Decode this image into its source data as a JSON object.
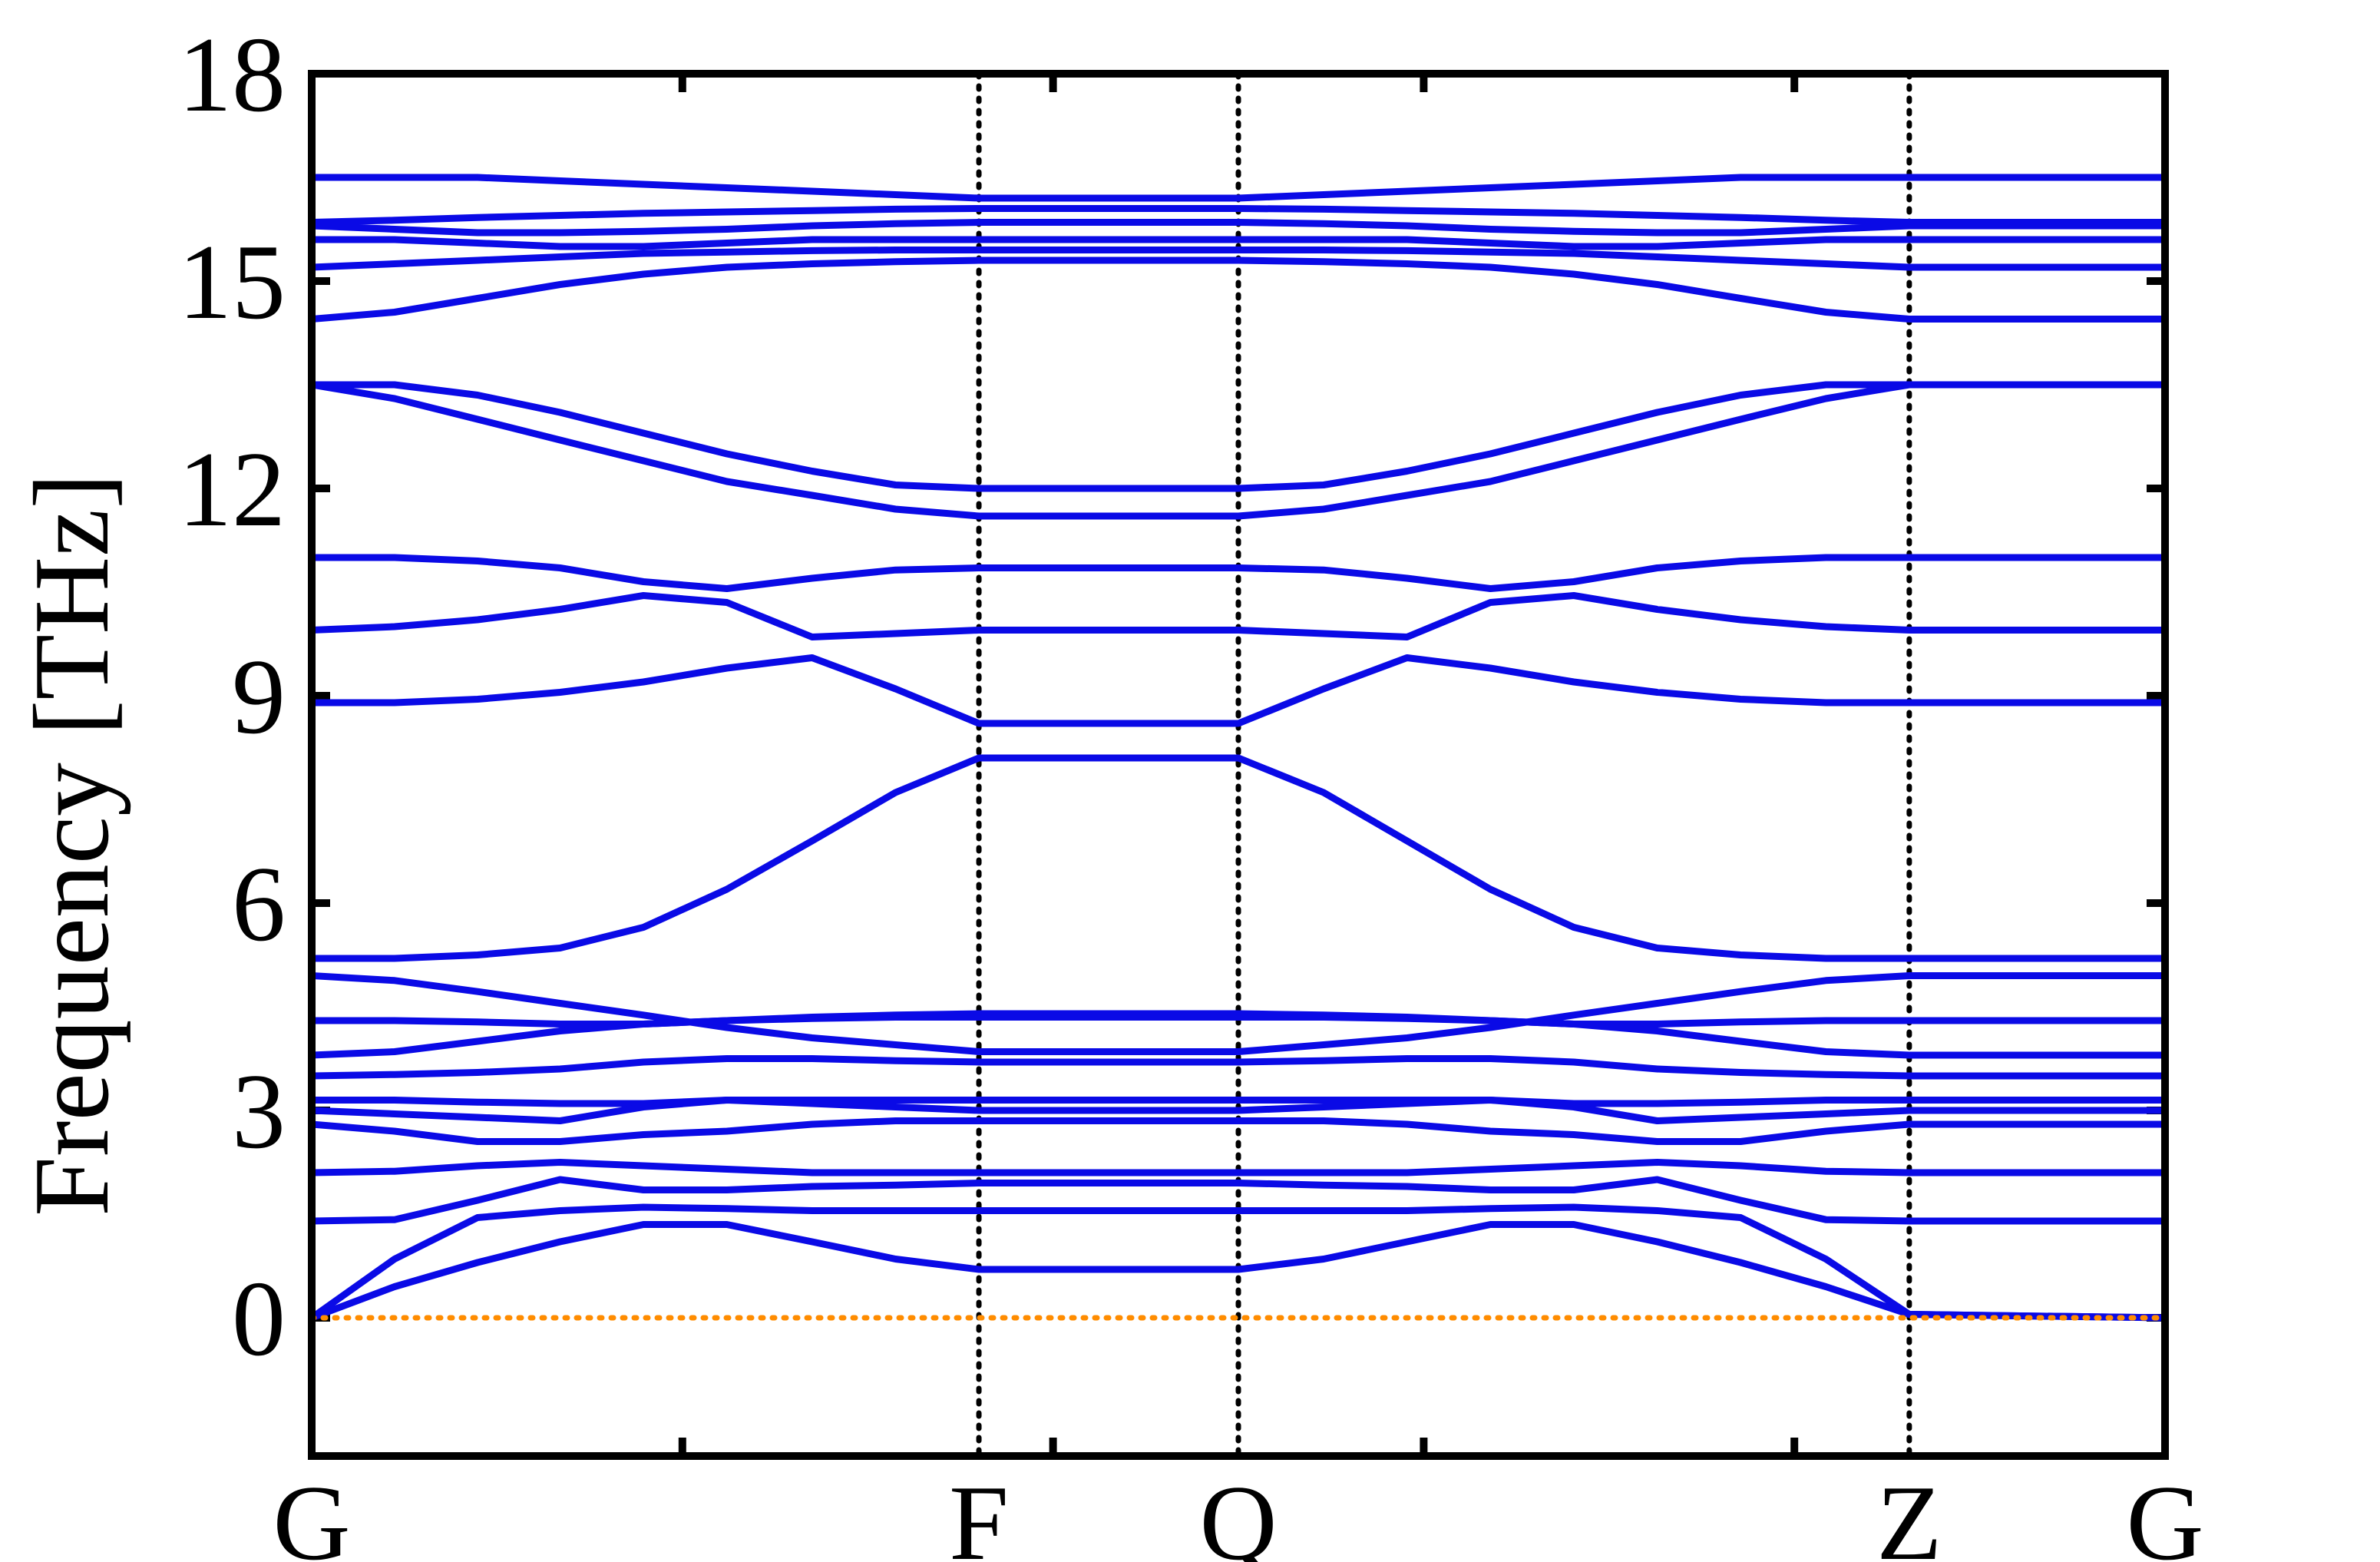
{
  "chart_data": {
    "type": "line",
    "ylabel": "Frequency [THz]",
    "xlim": [
      0,
      1
    ],
    "ylim": [
      -2,
      18
    ],
    "xticks": [
      {
        "value": 0,
        "label": "G"
      },
      {
        "value": 0.36,
        "label": "F"
      },
      {
        "value": 0.5,
        "label": "Q"
      },
      {
        "value": 0.862,
        "label": "Z"
      },
      {
        "value": 1,
        "label": "G"
      }
    ],
    "xminorticks": [
      0.2,
      0.4,
      0.6,
      0.8
    ],
    "yticks": [
      0,
      3,
      6,
      9,
      12,
      15,
      18
    ],
    "xtick_lines": "dotted",
    "x": [
      0,
      0.0447,
      0.0895,
      0.134,
      0.179,
      0.224,
      0.27,
      0.315,
      0.36,
      0.5,
      0.546,
      0.591,
      0.636,
      0.681,
      0.726,
      0.771,
      0.817,
      0.862,
      1
    ],
    "series": [
      {
        "color": "#0a0ae6",
        "values": [
          16.5,
          16.5,
          16.5,
          16.45,
          16.4,
          16.35,
          16.3,
          16.25,
          16.2,
          16.2,
          16.25,
          16.3,
          16.35,
          16.4,
          16.45,
          16.5,
          16.5,
          16.5,
          16.5
        ]
      },
      {
        "color": "#0a0ae6",
        "values": [
          15.85,
          15.88,
          15.92,
          15.95,
          15.98,
          16.0,
          16.02,
          16.04,
          16.05,
          16.05,
          16.04,
          16.02,
          16.0,
          15.98,
          15.95,
          15.92,
          15.88,
          15.85,
          15.85
        ]
      },
      {
        "color": "#0a0ae6",
        "values": [
          15.8,
          15.75,
          15.7,
          15.7,
          15.72,
          15.75,
          15.8,
          15.83,
          15.85,
          15.85,
          15.83,
          15.8,
          15.75,
          15.72,
          15.7,
          15.7,
          15.75,
          15.8,
          15.8
        ]
      },
      {
        "color": "#0a0ae6",
        "values": [
          15.6,
          15.6,
          15.55,
          15.5,
          15.5,
          15.55,
          15.6,
          15.6,
          15.6,
          15.6,
          15.6,
          15.6,
          15.55,
          15.5,
          15.5,
          15.55,
          15.6,
          15.6,
          15.6
        ]
      },
      {
        "color": "#0a0ae6",
        "values": [
          15.2,
          15.25,
          15.3,
          15.35,
          15.4,
          15.42,
          15.44,
          15.45,
          15.45,
          15.45,
          15.45,
          15.44,
          15.42,
          15.4,
          15.35,
          15.3,
          15.25,
          15.2,
          15.2
        ]
      },
      {
        "color": "#0a0ae6",
        "values": [
          14.45,
          14.55,
          14.75,
          14.95,
          15.1,
          15.2,
          15.25,
          15.28,
          15.3,
          15.3,
          15.28,
          15.25,
          15.2,
          15.1,
          14.95,
          14.75,
          14.55,
          14.45,
          14.45
        ]
      },
      {
        "color": "#0a0ae6",
        "values": [
          13.5,
          13.5,
          13.35,
          13.1,
          12.8,
          12.5,
          12.25,
          12.05,
          12.0,
          12.0,
          12.05,
          12.25,
          12.5,
          12.8,
          13.1,
          13.35,
          13.5,
          13.5,
          13.5
        ]
      },
      {
        "color": "#0a0ae6",
        "values": [
          13.5,
          13.3,
          13.0,
          12.7,
          12.4,
          12.1,
          11.9,
          11.7,
          11.6,
          11.6,
          11.7,
          11.9,
          12.1,
          12.4,
          12.7,
          13.0,
          13.3,
          13.5,
          13.5
        ]
      },
      {
        "color": "#0a0ae6",
        "values": [
          11.0,
          11.0,
          10.95,
          10.85,
          10.65,
          10.55,
          10.7,
          10.82,
          10.85,
          10.85,
          10.82,
          10.7,
          10.55,
          10.65,
          10.85,
          10.95,
          11.0,
          11.0,
          11.0
        ]
      },
      {
        "color": "#0a0ae6",
        "values": [
          9.95,
          10.0,
          10.1,
          10.25,
          10.45,
          10.35,
          9.85,
          9.9,
          9.95,
          9.95,
          9.9,
          9.85,
          10.35,
          10.45,
          10.25,
          10.1,
          10.0,
          9.95,
          9.95
        ]
      },
      {
        "color": "#0a0ae6",
        "values": [
          8.9,
          8.9,
          8.95,
          9.05,
          9.2,
          9.4,
          9.55,
          9.1,
          8.6,
          8.6,
          9.1,
          9.55,
          9.4,
          9.2,
          9.05,
          8.95,
          8.9,
          8.9,
          8.9
        ]
      },
      {
        "color": "#0a0ae6",
        "values": [
          5.2,
          5.2,
          5.25,
          5.35,
          5.65,
          6.2,
          6.9,
          7.6,
          8.1,
          8.1,
          7.6,
          6.9,
          6.2,
          5.65,
          5.35,
          5.25,
          5.2,
          5.2,
          5.2
        ]
      },
      {
        "color": "#0a0ae6",
        "values": [
          4.95,
          4.88,
          4.72,
          4.55,
          4.38,
          4.2,
          4.05,
          3.95,
          3.85,
          3.85,
          3.95,
          4.05,
          4.2,
          4.38,
          4.55,
          4.72,
          4.88,
          4.95,
          4.95
        ]
      },
      {
        "color": "#0a0ae6",
        "values": [
          4.3,
          4.3,
          4.28,
          4.25,
          4.25,
          4.3,
          4.35,
          4.38,
          4.4,
          4.4,
          4.38,
          4.35,
          4.3,
          4.25,
          4.25,
          4.28,
          4.3,
          4.3,
          4.3
        ]
      },
      {
        "color": "#0a0ae6",
        "values": [
          3.8,
          3.85,
          4.0,
          4.15,
          4.25,
          4.3,
          4.33,
          4.35,
          4.35,
          4.35,
          4.35,
          4.33,
          4.3,
          4.25,
          4.15,
          4.0,
          3.85,
          3.8,
          3.8
        ]
      },
      {
        "color": "#0a0ae6",
        "values": [
          3.5,
          3.52,
          3.55,
          3.6,
          3.7,
          3.75,
          3.75,
          3.72,
          3.7,
          3.7,
          3.72,
          3.75,
          3.75,
          3.7,
          3.6,
          3.55,
          3.52,
          3.5,
          3.5
        ]
      },
      {
        "color": "#0a0ae6",
        "values": [
          3.15,
          3.15,
          3.12,
          3.1,
          3.1,
          3.15,
          3.15,
          3.15,
          3.15,
          3.15,
          3.15,
          3.15,
          3.15,
          3.1,
          3.1,
          3.12,
          3.15,
          3.15,
          3.15
        ]
      },
      {
        "color": "#0a0ae6",
        "values": [
          3.0,
          2.95,
          2.9,
          2.85,
          3.05,
          3.15,
          3.1,
          3.05,
          3.0,
          3.0,
          3.05,
          3.1,
          3.15,
          3.05,
          2.85,
          2.9,
          2.95,
          3.0,
          3.0
        ]
      },
      {
        "color": "#0a0ae6",
        "values": [
          2.8,
          2.7,
          2.55,
          2.55,
          2.65,
          2.7,
          2.8,
          2.85,
          2.85,
          2.85,
          2.85,
          2.8,
          2.7,
          2.65,
          2.55,
          2.55,
          2.7,
          2.8,
          2.8
        ]
      },
      {
        "color": "#0a0ae6",
        "values": [
          2.1,
          2.12,
          2.2,
          2.25,
          2.2,
          2.15,
          2.1,
          2.1,
          2.1,
          2.1,
          2.1,
          2.1,
          2.15,
          2.2,
          2.25,
          2.2,
          2.12,
          2.1,
          2.1
        ]
      },
      {
        "color": "#0a0ae6",
        "values": [
          1.4,
          1.42,
          1.7,
          2.0,
          1.85,
          1.85,
          1.9,
          1.92,
          1.95,
          1.95,
          1.92,
          1.9,
          1.85,
          1.85,
          2.0,
          1.7,
          1.42,
          1.4,
          1.4
        ]
      },
      {
        "color": "#0a0ae6",
        "values": [
          0,
          0.85,
          1.45,
          1.55,
          1.6,
          1.58,
          1.55,
          1.55,
          1.55,
          1.55,
          1.55,
          1.55,
          1.58,
          1.6,
          1.55,
          1.45,
          0.85,
          0.05,
          0
        ]
      },
      {
        "color": "#0a0ae6",
        "values": [
          0,
          0.45,
          0.8,
          1.1,
          1.35,
          1.35,
          1.1,
          0.85,
          0.7,
          0.7,
          0.85,
          1.1,
          1.35,
          1.35,
          1.1,
          0.8,
          0.45,
          0.05,
          0
        ]
      },
      {
        "color": "#ff8c00",
        "dash": "dotted",
        "values": [
          0,
          0,
          0,
          0,
          0,
          0,
          0,
          0,
          0,
          0,
          0,
          0,
          0,
          0,
          0,
          0,
          0,
          0,
          0
        ]
      }
    ]
  }
}
